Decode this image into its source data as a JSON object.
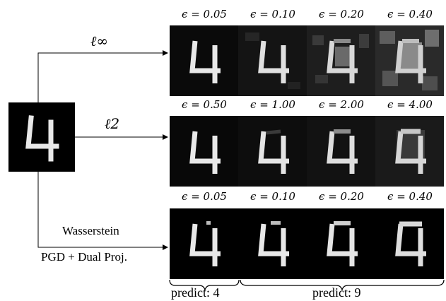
{
  "source_digit": "4",
  "branches": [
    {
      "label": "ℓ∞",
      "epsilons": [
        "ϵ = 0.05",
        "ϵ = 0.10",
        "ϵ = 0.20",
        "ϵ = 0.40"
      ],
      "digits": [
        "4",
        "4",
        "9",
        "9"
      ]
    },
    {
      "label": "ℓ2",
      "epsilons": [
        "ϵ = 0.50",
        "ϵ = 1.00",
        "ϵ = 2.00",
        "ϵ = 4.00"
      ],
      "digits": [
        "4",
        "4",
        "9",
        "9"
      ]
    },
    {
      "label_line1": "Wasserstein",
      "label_line2": "PGD + Dual Proj.",
      "epsilons": [
        "ϵ = 0.05",
        "ϵ = 0.10",
        "ϵ = 0.20",
        "ϵ = 0.40"
      ],
      "digits": [
        "4",
        "4",
        "4",
        "9"
      ]
    }
  ],
  "predictions": [
    "predict: 4",
    "predict: 9"
  ]
}
